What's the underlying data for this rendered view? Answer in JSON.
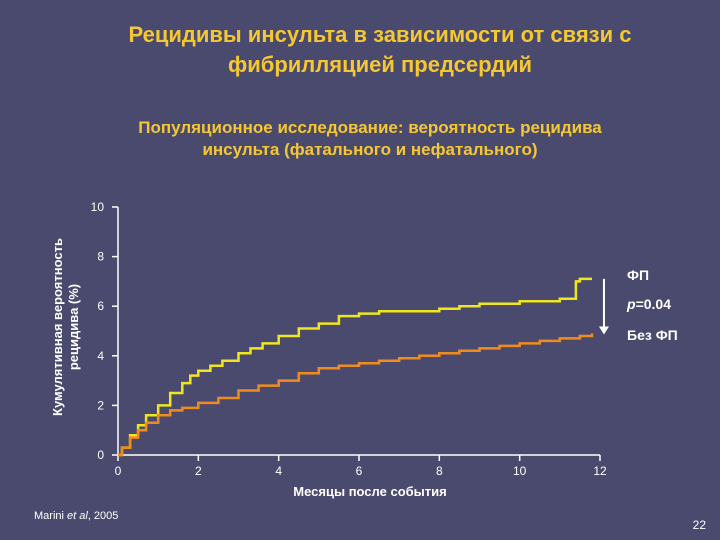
{
  "slide": {
    "title": "Рецидивы инсульта в зависимости от связи с\nфибрилляцией предсердий",
    "subtitle": "Популяционное исследование: вероятность рецидива\nинсульта (фатального и нефатального)",
    "citation_prefix": "Marini ",
    "citation_italic": "et al",
    "citation_suffix": ", 2005",
    "page_number": "22"
  },
  "chart_data": {
    "type": "line",
    "xlabel": "Месяцы после события",
    "ylabel": "Кумулятивная вероятность\nрецидива (%)",
    "xlim": [
      0,
      12
    ],
    "ylim": [
      0,
      10
    ],
    "xticks": [
      "0",
      "2",
      "4",
      "6",
      "8",
      "10",
      "12"
    ],
    "yticks": [
      "0",
      "2",
      "4",
      "6",
      "8",
      "10"
    ],
    "annotation_p_italic": "p",
    "annotation_p_rest": "=0.04",
    "series": [
      {
        "name": "ФП",
        "color": "#f0e61e",
        "x": [
          0,
          0.1,
          0.3,
          0.5,
          0.7,
          1.0,
          1.3,
          1.6,
          1.8,
          2.0,
          2.3,
          2.6,
          3.0,
          3.3,
          3.6,
          4.0,
          4.5,
          5.0,
          5.5,
          6.0,
          6.5,
          7.0,
          7.5,
          8.0,
          8.5,
          9.0,
          9.5,
          10.0,
          10.5,
          11.0,
          11.3,
          11.4,
          11.5,
          11.7,
          11.8
        ],
        "y": [
          0,
          0.3,
          0.8,
          1.2,
          1.6,
          2.0,
          2.5,
          2.9,
          3.2,
          3.4,
          3.6,
          3.8,
          4.1,
          4.3,
          4.5,
          4.8,
          5.1,
          5.3,
          5.6,
          5.7,
          5.8,
          5.8,
          5.8,
          5.9,
          6.0,
          6.1,
          6.1,
          6.2,
          6.2,
          6.3,
          6.3,
          7.0,
          7.1,
          7.1,
          7.1
        ]
      },
      {
        "name": "Без ФП",
        "color": "#f08c1e",
        "x": [
          0,
          0.1,
          0.3,
          0.5,
          0.7,
          1.0,
          1.3,
          1.6,
          2.0,
          2.5,
          3.0,
          3.5,
          4.0,
          4.5,
          5.0,
          5.5,
          6.0,
          6.5,
          7.0,
          7.5,
          8.0,
          8.5,
          9.0,
          9.5,
          10.0,
          10.5,
          11.0,
          11.5,
          11.8
        ],
        "y": [
          0,
          0.3,
          0.7,
          1.0,
          1.3,
          1.6,
          1.8,
          1.9,
          2.1,
          2.3,
          2.6,
          2.8,
          3.0,
          3.3,
          3.5,
          3.6,
          3.7,
          3.8,
          3.9,
          4.0,
          4.1,
          4.2,
          4.3,
          4.4,
          4.5,
          4.6,
          4.7,
          4.8,
          4.9
        ]
      }
    ]
  }
}
